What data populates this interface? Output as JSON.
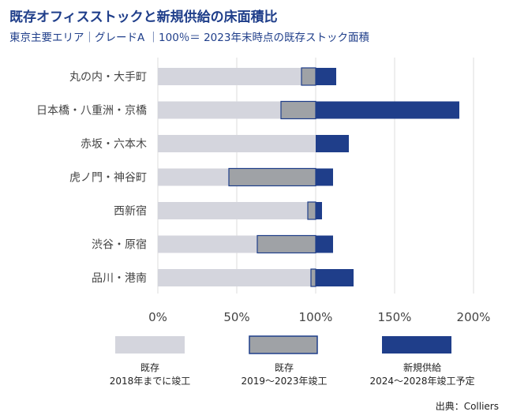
{
  "title": "既存オフィスストックと新規供給の床面積比",
  "subtitle": "東京主要エリア｜グレードA ｜100％＝ 2023年末時点の既存ストック面積",
  "source": "出典：Colliers",
  "colors": {
    "existing_old": "#d4d5dd",
    "existing_new": "#9fa2a6",
    "new_supply": "#1f3e8a",
    "grid": "#dddddd",
    "text": "#444444"
  },
  "legend": [
    {
      "line1": "既存",
      "line2": "2018年までに竣工"
    },
    {
      "line1": "既存",
      "line2": "2019～2023年竣工"
    },
    {
      "line1": "新規供給",
      "line2": "2024～2028年竣工予定"
    }
  ],
  "chart_data": {
    "type": "bar",
    "orientation": "horizontal",
    "stacked": true,
    "unit": "%",
    "categories": [
      "丸の内・大手町",
      "日本橋・八重洲・京橋",
      "赤坂・六本木",
      "虎ノ門・神谷町",
      "西新宿",
      "渋谷・原宿",
      "品川・港南"
    ],
    "series": [
      {
        "name": "既存 2018年までに竣工",
        "values": [
          91,
          78,
          100,
          45,
          95,
          63,
          97
        ]
      },
      {
        "name": "既存 2019～2023年竣工",
        "values": [
          9,
          22,
          0,
          55,
          5,
          37,
          3
        ]
      },
      {
        "name": "新規供給 2024～2028年竣工予定",
        "values": [
          13,
          91,
          21,
          11,
          4,
          11,
          24
        ]
      }
    ],
    "xlim": [
      0,
      200
    ],
    "xticks": [
      "0%",
      "50%",
      "100%",
      "150%",
      "200%"
    ],
    "grid": true,
    "legend_position": "bottom"
  }
}
